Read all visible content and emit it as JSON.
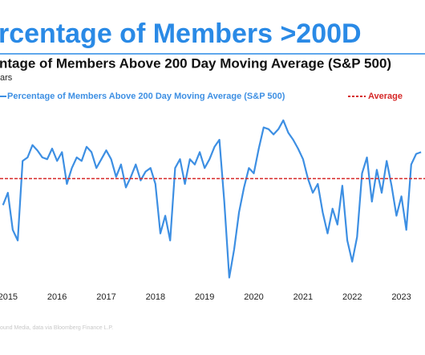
{
  "chart_data": {
    "type": "line",
    "title": "rcentage of Members >200D",
    "subtitle": "ntage of Members Above 200 Day Moving Average (S&P 500)",
    "note": "ars",
    "source": "ound Media, data via Bloomberg Finance L.P.",
    "x": [
      2014.9,
      2015.0,
      2015.1,
      2015.2,
      2015.3,
      2015.4,
      2015.5,
      2015.6,
      2015.7,
      2015.8,
      2015.9,
      2016.0,
      2016.1,
      2016.2,
      2016.3,
      2016.4,
      2016.5,
      2016.6,
      2016.7,
      2016.8,
      2016.9,
      2017.0,
      2017.1,
      2017.2,
      2017.3,
      2017.4,
      2017.5,
      2017.6,
      2017.7,
      2017.8,
      2017.9,
      2018.0,
      2018.1,
      2018.2,
      2018.3,
      2018.4,
      2018.5,
      2018.6,
      2018.7,
      2018.8,
      2018.9,
      2019.0,
      2019.1,
      2019.2,
      2019.3,
      2019.4,
      2019.5,
      2019.6,
      2019.7,
      2019.8,
      2019.9,
      2020.0,
      2020.1,
      2020.2,
      2020.3,
      2020.4,
      2020.5,
      2020.6,
      2020.7,
      2020.8,
      2020.9,
      2021.0,
      2021.1,
      2021.2,
      2021.3,
      2021.4,
      2021.5,
      2021.6,
      2021.7,
      2021.8,
      2021.9,
      2022.0,
      2022.1,
      2022.2,
      2022.3,
      2022.4,
      2022.5,
      2022.6,
      2022.7,
      2022.8,
      2022.9,
      2023.0,
      2023.1,
      2023.2,
      2023.3,
      2023.4
    ],
    "series": [
      {
        "name": "Percentage of Members Above 200 Day Moving Average (S&P 500)",
        "color": "#3d8fe3",
        "values": [
          46,
          53,
          32,
          26,
          71,
          73,
          80,
          77,
          73,
          72,
          78,
          71,
          76,
          58,
          67,
          73,
          71,
          79,
          76,
          67,
          72,
          77,
          72,
          62,
          69,
          56,
          62,
          69,
          60,
          65,
          67,
          58,
          30,
          40,
          26,
          67,
          72,
          58,
          72,
          69,
          76,
          67,
          72,
          79,
          83,
          48,
          5,
          21,
          42,
          56,
          67,
          64,
          78,
          90,
          89,
          86,
          89,
          94,
          87,
          83,
          78,
          72,
          61,
          53,
          58,
          42,
          30,
          44,
          35,
          57,
          26,
          14,
          28,
          64,
          73,
          48,
          66,
          53,
          71,
          57,
          40,
          51,
          32,
          69,
          75,
          76
        ]
      }
    ],
    "reference_line": {
      "name": "Average",
      "value": 61,
      "color": "#d62828"
    },
    "xlim": [
      2014.84,
      2023.48
    ],
    "xticks": [
      2015,
      2016,
      2017,
      2018,
      2019,
      2020,
      2021,
      2022,
      2023
    ],
    "ylim": [
      0,
      100
    ]
  }
}
